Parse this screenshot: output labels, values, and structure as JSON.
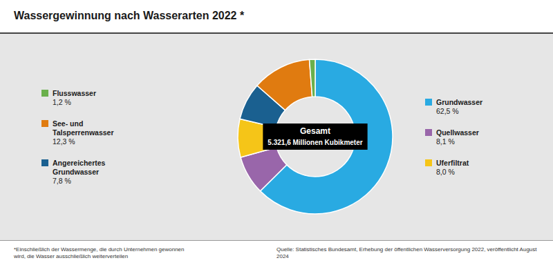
{
  "chart_data": {
    "type": "donut",
    "title": "Wassergewinnung nach Wasserarten 2022 *",
    "categories": [
      "Grundwasser",
      "Quellwasser",
      "Uferfiltrat",
      "Angereichertes\nGrundwasser",
      "See- und\nTalsperrenwasser",
      "Flusswasser"
    ],
    "values": [
      62.5,
      8.1,
      8.0,
      7.8,
      12.3,
      1.2
    ],
    "value_labels": [
      "62,5 %",
      "8,1 %",
      "8,0 %",
      "7,8 %",
      "12,3 %",
      "1,2 %"
    ],
    "colors": [
      "#29aae2",
      "#9966aa",
      "#f5c518",
      "#1a6090",
      "#e07b10",
      "#6ab04c"
    ],
    "data_labels": true,
    "annotations": [
      "Gesamt",
      "5.321,6 Millionen Kubikmeter",
      "*Einschließlich der Wassermenge, die durch Unternehmen gewonnen\nwird, die Wasser ausschließlich weiterverteilen",
      "Quelle: Statistisches Bundesamt, Erhebung der öffentlichen Wasserversorgung 2022, veröffentlicht August 2024"
    ]
  }
}
